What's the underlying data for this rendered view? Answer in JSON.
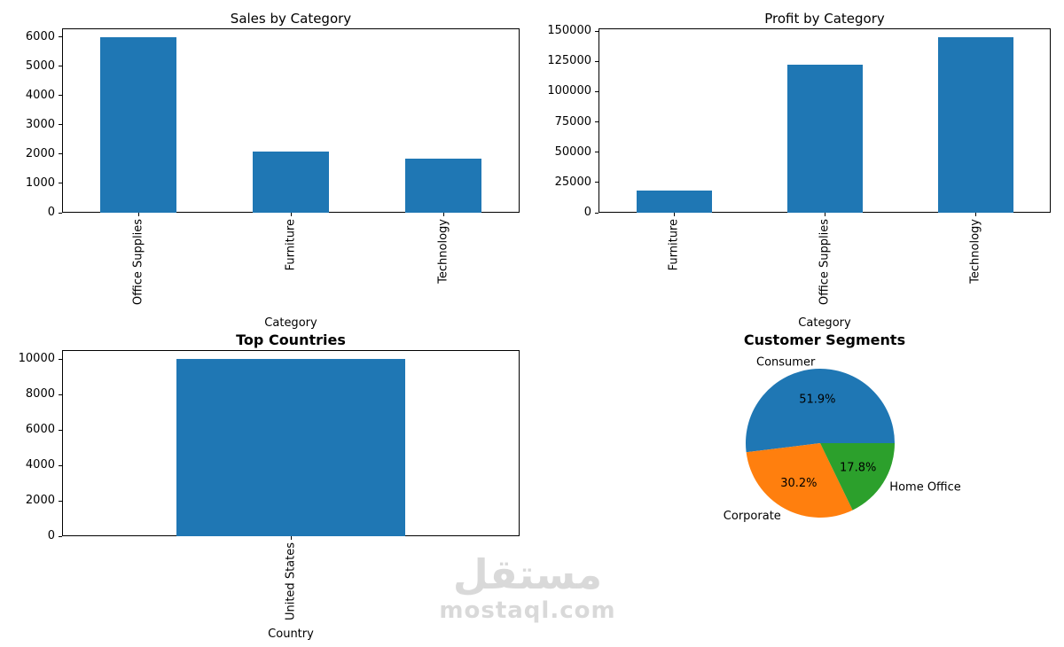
{
  "watermark": {
    "arabic": "مستقل",
    "latin": "mostaql.com"
  },
  "chart_data": [
    {
      "id": "sales_by_category",
      "type": "bar",
      "title": "Sales by Category",
      "xlabel": "Category",
      "ylabel": "",
      "categories": [
        "Office Supplies",
        "Furniture",
        "Technology"
      ],
      "values": [
        6000,
        2100,
        1850
      ],
      "yticks": [
        0,
        1000,
        2000,
        3000,
        4000,
        5000,
        6000
      ],
      "ylim": [
        0,
        6300
      ],
      "grid": false,
      "bar_color": "#1f77b4"
    },
    {
      "id": "profit_by_category",
      "type": "bar",
      "title": "Profit by Category",
      "xlabel": "Category",
      "ylabel": "",
      "categories": [
        "Furniture",
        "Office Supplies",
        "Technology"
      ],
      "values": [
        18000,
        122000,
        145000
      ],
      "yticks": [
        0,
        25000,
        50000,
        75000,
        100000,
        125000,
        150000
      ],
      "ylim": [
        0,
        152250
      ],
      "grid": false,
      "bar_color": "#1f77b4"
    },
    {
      "id": "top_countries",
      "type": "bar",
      "title": "Top Countries",
      "xlabel": "Country",
      "ylabel": "",
      "categories": [
        "United States"
      ],
      "values": [
        10000
      ],
      "yticks": [
        0,
        2000,
        4000,
        6000,
        8000,
        10000
      ],
      "ylim": [
        0,
        10500
      ],
      "grid": false,
      "bar_color": "#1f77b4"
    },
    {
      "id": "customer_segments",
      "type": "pie",
      "title": "Customer Segments",
      "labels": [
        "Consumer",
        "Corporate",
        "Home Office"
      ],
      "values": [
        51.9,
        30.2,
        17.8
      ],
      "percent_labels": [
        "51.9%",
        "30.2%",
        "17.8%"
      ],
      "colors": [
        "#1f77b4",
        "#ff7f0e",
        "#2ca02c"
      ],
      "start_angle": 0,
      "direction": "counterclockwise",
      "legend": "none"
    }
  ]
}
